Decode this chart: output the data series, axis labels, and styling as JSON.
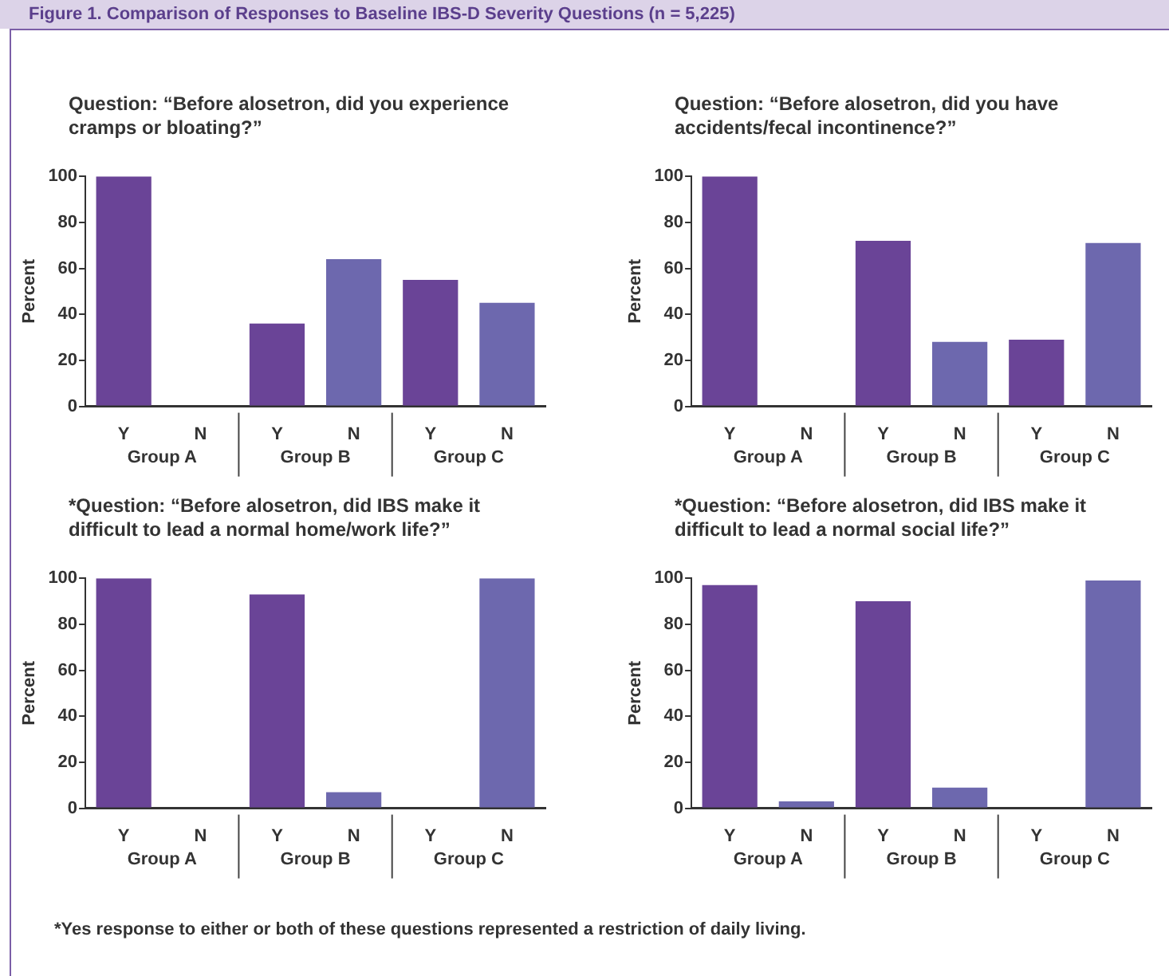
{
  "chart_data": [
    {
      "type": "bar",
      "title": "Figure 1. Comparison of Responses to Baseline IBS-D Severity Questions (n = 5,225)",
      "subtitle": "Question: “Before alosetron, did you experience cramps or bloating?”",
      "ylabel": "Percent",
      "categories": [
        "Y",
        "N",
        "Y",
        "N",
        "Y",
        "N"
      ],
      "values": [
        100,
        0,
        36,
        64,
        55,
        45
      ],
      "colors": [
        "#6a4497",
        "#6d68ae",
        "#6a4497",
        "#6d68ae",
        "#6a4497",
        "#6d68ae"
      ],
      "ylim": [
        0,
        100
      ],
      "yticks": [
        0,
        20,
        40,
        60,
        80,
        100
      ],
      "annotations": [
        "Group A",
        "Group B",
        "Group C"
      ]
    },
    {
      "type": "bar",
      "subtitle": "Question: “Before alosetron, did you have accidents/fecal incontinence?”",
      "ylabel": "Percent",
      "categories": [
        "Y",
        "N",
        "Y",
        "N",
        "Y",
        "N"
      ],
      "values": [
        100,
        0,
        72,
        28,
        29,
        71
      ],
      "colors": [
        "#6a4497",
        "#6d68ae",
        "#6a4497",
        "#6d68ae",
        "#6a4497",
        "#6d68ae"
      ],
      "ylim": [
        0,
        100
      ],
      "yticks": [
        0,
        20,
        40,
        60,
        80,
        100
      ],
      "annotations": [
        "Group A",
        "Group B",
        "Group C"
      ]
    },
    {
      "type": "bar",
      "subtitle": "*Question: “Before alosetron, did IBS make it difficult to lead a normal home/work life?”",
      "ylabel": "Percent",
      "categories": [
        "Y",
        "N",
        "Y",
        "N",
        "Y",
        "N"
      ],
      "values": [
        100,
        0,
        93,
        7,
        0,
        100
      ],
      "colors": [
        "#6a4497",
        "#6d68ae",
        "#6a4497",
        "#6d68ae",
        "#6a4497",
        "#6d68ae"
      ],
      "ylim": [
        0,
        100
      ],
      "yticks": [
        0,
        20,
        40,
        60,
        80,
        100
      ],
      "annotations": [
        "Group A",
        "Group B",
        "Group C"
      ]
    },
    {
      "type": "bar",
      "subtitle": "*Question: “Before alosetron, did IBS make it difficult to lead a normal social life?”",
      "ylabel": "Percent",
      "categories": [
        "Y",
        "N",
        "Y",
        "N",
        "Y",
        "N"
      ],
      "values": [
        97,
        3,
        90,
        9,
        0,
        99
      ],
      "colors": [
        "#6a4497",
        "#6d68ae",
        "#6a4497",
        "#6d68ae",
        "#6a4497",
        "#6d68ae"
      ],
      "ylim": [
        0,
        100
      ],
      "yticks": [
        0,
        20,
        40,
        60,
        80,
        100
      ],
      "annotations": [
        "Group A",
        "Group B",
        "Group C",
        "*Yes response to either or both of these questions represented a restriction of daily living."
      ]
    }
  ]
}
